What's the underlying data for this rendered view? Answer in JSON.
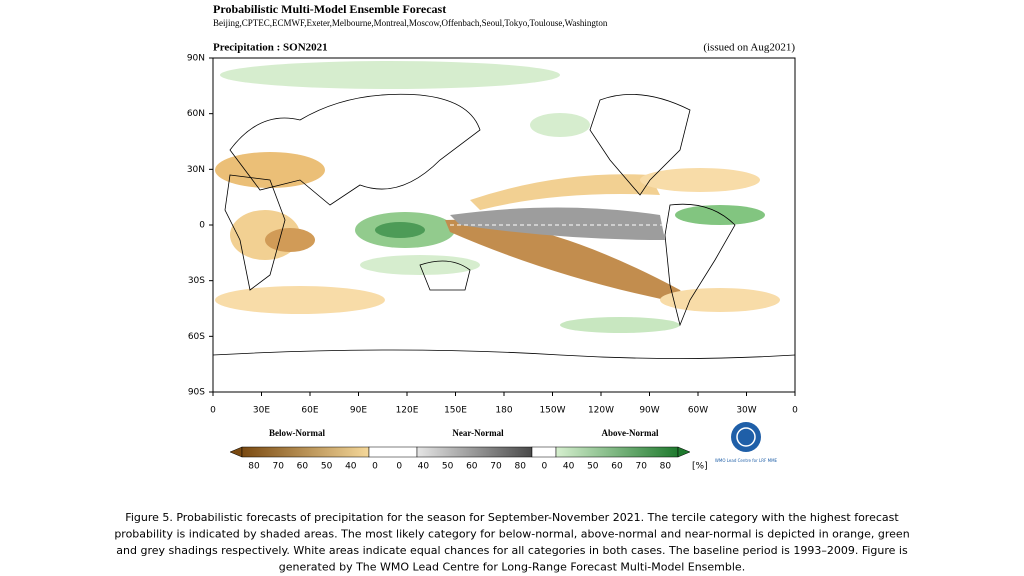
{
  "header": {
    "title": "Probabilistic Multi-Model Ensemble Forecast",
    "subtitle": "Beijing,CPTEC,ECMWF,Exeter,Melbourne,Montreal,Moscow,Offenbach,Seoul,Tokyo,Toulouse,Washington"
  },
  "panel": {
    "title": "Precipitation : SON2021",
    "issued": "(issued on Aug2021)"
  },
  "map": {
    "lat_labels": [
      "90N",
      "60N",
      "30N",
      "0",
      "30S",
      "60S",
      "90S"
    ],
    "lon_labels": [
      "0",
      "30E",
      "60E",
      "90E",
      "120E",
      "150E",
      "180",
      "150W",
      "120W",
      "90W",
      "60W",
      "30W",
      "0"
    ]
  },
  "legend": {
    "groups": [
      "Below-Normal",
      "Near-Normal",
      "Above-Normal"
    ],
    "ticks": [
      "80",
      "70",
      "60",
      "50",
      "40",
      "0",
      "0",
      "40",
      "50",
      "60",
      "70",
      "80",
      "0",
      "40",
      "50",
      "60",
      "70",
      "80"
    ],
    "unit": "[%]",
    "logo_text": "WMO Lead Centre for LRF MME"
  },
  "caption": [
    "Figure 5. Probabilistic forecasts of precipitation for the season for September-November 2021. The tercile category with the highest forecast",
    "probability is indicated by shaded areas. The most likely category for below-normal, above-normal and near-normal is depicted in orange, green",
    "and grey shadings respectively. White areas indicate equal chances for all categories in both cases. The baseline period is 1993–2009. Figure is",
    "generated by The WMO Lead Centre for Long-Range Forecast Multi-Model Ensemble."
  ]
}
